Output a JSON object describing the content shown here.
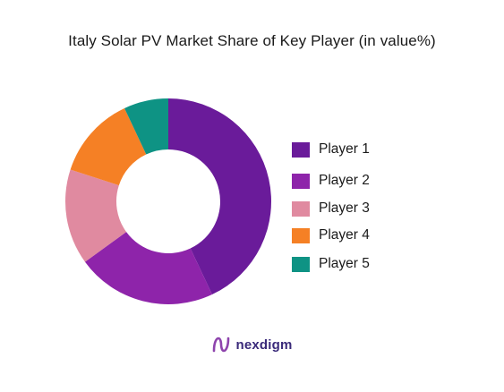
{
  "chart_data": {
    "type": "pie",
    "title": "Italy Solar PV Market Share of Key Player (in value%)",
    "donut": true,
    "categories": [
      "Player 1",
      "Player 2",
      "Player 3",
      "Player 4",
      "Player 5"
    ],
    "values": [
      43,
      22,
      15,
      13,
      7
    ],
    "colors": [
      "#6a1b9a",
      "#8e24aa",
      "#e08aa0",
      "#f58025",
      "#0e9384"
    ],
    "legend_position": "right"
  },
  "legend": [
    {
      "label": "Player 1",
      "color": "#6a1b9a"
    },
    {
      "label": "Player 2",
      "color": "#8e24aa"
    },
    {
      "label": "Player 3",
      "color": "#e08aa0"
    },
    {
      "label": "Player 4",
      "color": "#f58025"
    },
    {
      "label": "Player 5",
      "color": "#0e9384"
    }
  ],
  "brand": {
    "name": "nexdigm",
    "icon": "nexdigm-logo-icon",
    "color": "#3a2a7a",
    "accent": "#8e44ad"
  }
}
